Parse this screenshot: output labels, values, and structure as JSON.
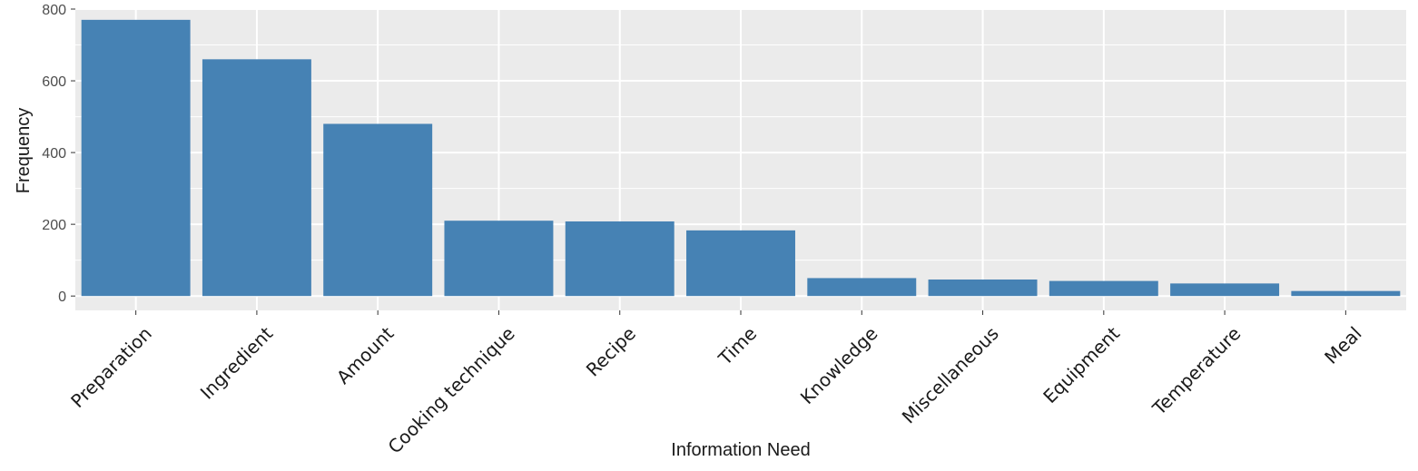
{
  "chart_data": {
    "type": "bar",
    "xlabel": "Information Need",
    "ylabel": "Frequency",
    "categories": [
      "Preparation",
      "Ingredient",
      "Amount",
      "Cooking technique",
      "Recipe",
      "Time",
      "Knowledge",
      "Miscellaneous",
      "Equipment",
      "Temperature",
      "Meal"
    ],
    "values": [
      770,
      660,
      480,
      210,
      208,
      183,
      50,
      46,
      42,
      35,
      14
    ],
    "ylim": [
      -40,
      800
    ],
    "yticks": [
      0,
      200,
      400,
      600,
      800
    ],
    "grid": true,
    "colors": {
      "bar": "#4682b4",
      "panel": "#ebebeb",
      "grid": "#ffffff"
    }
  }
}
